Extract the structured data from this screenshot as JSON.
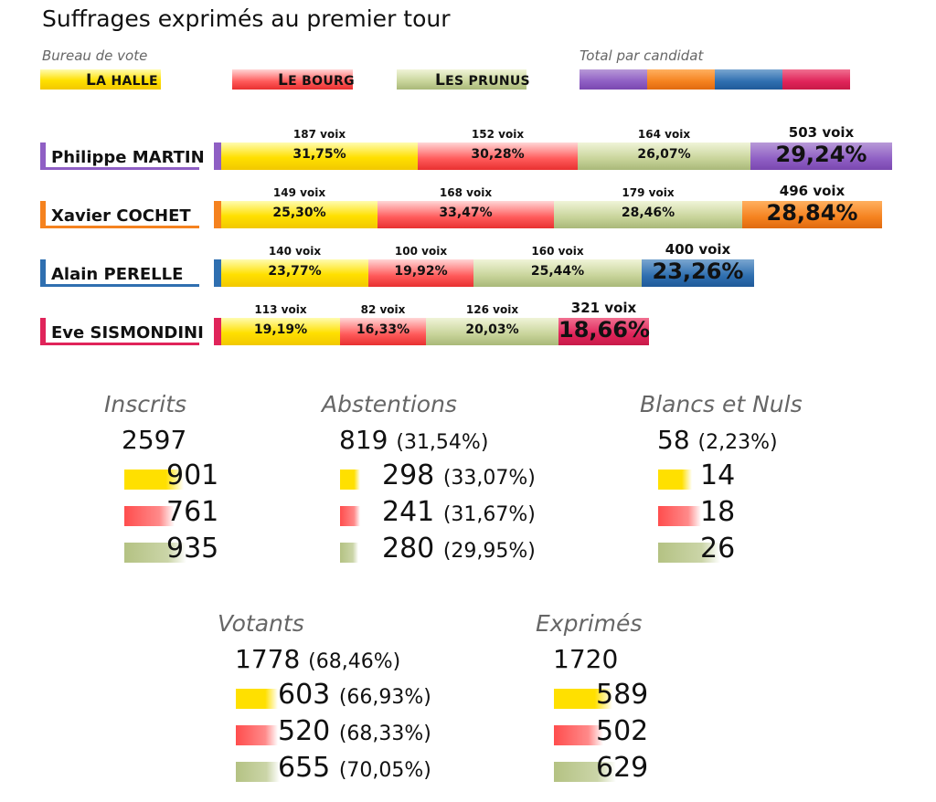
{
  "title": "Suffrages exprimés au premier tour",
  "legend": {
    "bureau_label": "Bureau de vote",
    "total_label": "Total par candidat",
    "bureaux": [
      {
        "name": "La Halle",
        "color": "#ffe000"
      },
      {
        "name": "Le Bourg",
        "color": "#ff4d4d"
      },
      {
        "name": "Les Prunus",
        "color": "#c0cc90"
      }
    ],
    "candidate_colors": [
      "#8f5fc4",
      "#f5821f",
      "#2f6fb0",
      "#e0245a"
    ]
  },
  "chart_data": {
    "type": "bar",
    "title": "Suffrages exprimés au premier tour",
    "categories": [
      "La Halle",
      "Le Bourg",
      "Les Prunus"
    ],
    "candidates": [
      {
        "name": "Philippe MARTIN",
        "color": "#8f5fc4",
        "bureaux": [
          {
            "voix": "187 voix",
            "votes": 187,
            "pct": "31,75%",
            "value": 31.75
          },
          {
            "voix": "152 voix",
            "votes": 152,
            "pct": "30,28%",
            "value": 30.28
          },
          {
            "voix": "164 voix",
            "votes": 164,
            "pct": "26,07%",
            "value": 26.07
          }
        ],
        "total": {
          "voix": "503 voix",
          "votes": 503,
          "pct": "29,24%",
          "value": 29.24
        }
      },
      {
        "name": "Xavier COCHET",
        "color": "#f5821f",
        "bureaux": [
          {
            "voix": "149 voix",
            "votes": 149,
            "pct": "25,30%",
            "value": 25.3
          },
          {
            "voix": "168 voix",
            "votes": 168,
            "pct": "33,47%",
            "value": 33.47
          },
          {
            "voix": "179 voix",
            "votes": 179,
            "pct": "28,46%",
            "value": 28.46
          }
        ],
        "total": {
          "voix": "496 voix",
          "votes": 496,
          "pct": "28,84%",
          "value": 28.84
        }
      },
      {
        "name": "Alain PERELLE",
        "color": "#2f6fb0",
        "bureaux": [
          {
            "voix": "140 voix",
            "votes": 140,
            "pct": "23,77%",
            "value": 23.77
          },
          {
            "voix": "100 voix",
            "votes": 100,
            "pct": "19,92%",
            "value": 19.92
          },
          {
            "voix": "160 voix",
            "votes": 160,
            "pct": "25,44%",
            "value": 25.44
          }
        ],
        "total": {
          "voix": "400 voix",
          "votes": 400,
          "pct": "23,26%",
          "value": 23.26
        }
      },
      {
        "name": "Eve SISMONDINI",
        "color": "#e0245a",
        "bureaux": [
          {
            "voix": "113 voix",
            "votes": 113,
            "pct": "19,19%",
            "value": 19.19
          },
          {
            "voix": "82 voix",
            "votes": 82,
            "pct": "16,33%",
            "value": 16.33
          },
          {
            "voix": "126 voix",
            "votes": 126,
            "pct": "20,03%",
            "value": 20.03
          }
        ],
        "total": {
          "voix": "321 voix",
          "votes": 321,
          "pct": "18,66%",
          "value": 18.66
        }
      }
    ]
  },
  "stats": {
    "inscrits": {
      "label": "Inscrits",
      "total": "2597",
      "total_pct": "",
      "rows": [
        {
          "num": "901",
          "pct": "",
          "fill": 0.96
        },
        {
          "num": "761",
          "pct": "",
          "fill": 0.81
        },
        {
          "num": "935",
          "pct": "",
          "fill": 1.0
        }
      ]
    },
    "abstentions": {
      "label": "Abstentions",
      "total": "819",
      "total_pct": "(31,54%)",
      "rows": [
        {
          "num": "298",
          "pct": "(33,07%)",
          "fill": 0.3307
        },
        {
          "num": "241",
          "pct": "(31,67%)",
          "fill": 0.3167
        },
        {
          "num": "280",
          "pct": "(29,95%)",
          "fill": 0.2995
        }
      ]
    },
    "blancs": {
      "label": "Blancs et Nuls",
      "total": "58",
      "total_pct": "(2,23%)",
      "rows": [
        {
          "num": "14",
          "pct": "",
          "fill": 0.54
        },
        {
          "num": "18",
          "pct": "",
          "fill": 0.69
        },
        {
          "num": "26",
          "pct": "",
          "fill": 1.0
        }
      ]
    },
    "votants": {
      "label": "Votants",
      "total": "1778",
      "total_pct": "(68,46%)",
      "rows": [
        {
          "num": "603",
          "pct": "(66,93%)",
          "fill": 0.6693
        },
        {
          "num": "520",
          "pct": "(68,33%)",
          "fill": 0.6833
        },
        {
          "num": "655",
          "pct": "(70,05%)",
          "fill": 0.7005
        }
      ]
    },
    "exprimes": {
      "label": "Exprimés",
      "total": "1720",
      "total_pct": "",
      "rows": [
        {
          "num": "589",
          "pct": "",
          "fill": 0.94
        },
        {
          "num": "502",
          "pct": "",
          "fill": 0.8
        },
        {
          "num": "629",
          "pct": "",
          "fill": 1.0
        }
      ]
    }
  }
}
